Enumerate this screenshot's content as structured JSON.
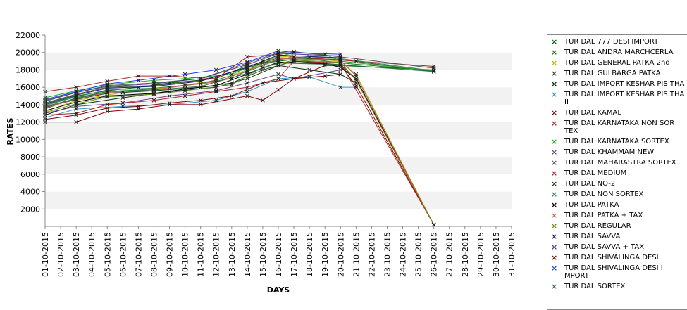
{
  "chart_data": {
    "type": "line",
    "title": "",
    "xlabel": "DAYS",
    "ylabel": "RATES",
    "ylim": [
      0,
      22000
    ],
    "yticks": [
      2000,
      4000,
      6000,
      8000,
      10000,
      12000,
      14000,
      16000,
      18000,
      20000,
      22000
    ],
    "x": [
      "01-10-2015",
      "02-10-2015",
      "03-10-2015",
      "04-10-2015",
      "05-10-2015",
      "06-10-2015",
      "07-10-2015",
      "08-10-2015",
      "09-10-2015",
      "10-10-2015",
      "11-10-2015",
      "12-10-2015",
      "13-10-2015",
      "14-10-2015",
      "15-10-2015",
      "16-10-2015",
      "17-10-2015",
      "18-10-2015",
      "19-10-2015",
      "20-10-2015",
      "21-10-2015",
      "22-10-2015",
      "23-10-2015",
      "24-10-2015",
      "25-10-2015",
      "26-10-2015",
      "27-10-2015",
      "28-10-2015",
      "29-10-2015",
      "30-10-2015",
      "31-10-2015"
    ],
    "grid": "alternating horizontal bands",
    "legend_position": "right",
    "series": [
      {
        "name": "TUR DAL  777 DESI IMPORT",
        "color": "#006400",
        "points": [
          [
            "01-10-2015",
            14000
          ],
          [
            "03-10-2015",
            15000
          ],
          [
            "05-10-2015",
            15600
          ],
          [
            "07-10-2015",
            16000
          ],
          [
            "09-10-2015",
            16500
          ],
          [
            "12-10-2015",
            17000
          ],
          [
            "14-10-2015",
            18500
          ],
          [
            "16-10-2015",
            19000
          ],
          [
            "17-10-2015",
            19200
          ],
          [
            "20-10-2015",
            18500
          ],
          [
            "26-10-2015",
            18000
          ]
        ]
      },
      {
        "name": "TUR DAL ANDRA MARCHCERLA",
        "color": "#1a7a1a",
        "points": [
          [
            "01-10-2015",
            13500
          ],
          [
            "03-10-2015",
            14800
          ],
          [
            "05-10-2015",
            15500
          ],
          [
            "08-10-2015",
            15800
          ],
          [
            "10-10-2015",
            16200
          ],
          [
            "13-10-2015",
            17000
          ],
          [
            "15-10-2015",
            18800
          ],
          [
            "17-10-2015",
            19500
          ],
          [
            "20-10-2015",
            18800
          ],
          [
            "26-10-2015",
            17900
          ]
        ]
      },
      {
        "name": "TUR DAL GENERAL PATKA 2nd",
        "color": "#b8b800",
        "points": [
          [
            "01-10-2015",
            13200
          ],
          [
            "03-10-2015",
            14500
          ],
          [
            "06-10-2015",
            15400
          ],
          [
            "09-10-2015",
            16000
          ],
          [
            "12-10-2015",
            16800
          ],
          [
            "14-10-2015",
            18000
          ],
          [
            "16-10-2015",
            19600
          ],
          [
            "20-10-2015",
            19000
          ],
          [
            "21-10-2015",
            17500
          ],
          [
            "26-10-2015",
            200
          ]
        ]
      },
      {
        "name": "TUR DAL GULBARGA PATKA",
        "color": "#2f4f2f",
        "points": [
          [
            "01-10-2015",
            14200
          ],
          [
            "03-10-2015",
            15200
          ],
          [
            "05-10-2015",
            16000
          ],
          [
            "08-10-2015",
            16200
          ],
          [
            "11-10-2015",
            16800
          ],
          [
            "14-10-2015",
            18200
          ],
          [
            "16-10-2015",
            19400
          ],
          [
            "20-10-2015",
            19200
          ],
          [
            "26-10-2015",
            17800
          ]
        ]
      },
      {
        "name": "TUR DAL IMPORT KESHAR PIS THA I",
        "color": "#003300",
        "points": [
          [
            "01-10-2015",
            12800
          ],
          [
            "03-10-2015",
            14000
          ],
          [
            "06-10-2015",
            14800
          ],
          [
            "09-10-2015",
            15500
          ],
          [
            "12-10-2015",
            16000
          ],
          [
            "14-10-2015",
            17000
          ],
          [
            "16-10-2015",
            18500
          ],
          [
            "18-10-2015",
            18000
          ],
          [
            "20-10-2015",
            17500
          ],
          [
            "21-10-2015",
            16500
          ]
        ]
      },
      {
        "name": "TUR DAL IMPORT KESHAR PIS THA II",
        "color": "#3399cc",
        "points": [
          [
            "01-10-2015",
            12500
          ],
          [
            "03-10-2015",
            13500
          ],
          [
            "06-10-2015",
            13800
          ],
          [
            "09-10-2015",
            14000
          ],
          [
            "12-10-2015",
            14500
          ],
          [
            "14-10-2015",
            15500
          ],
          [
            "16-10-2015",
            17000
          ],
          [
            "18-10-2015",
            17200
          ],
          [
            "20-10-2015",
            16000
          ],
          [
            "21-10-2015",
            16000
          ]
        ]
      },
      {
        "name": "TUR DAL KAMAL",
        "color": "#8b0000",
        "points": [
          [
            "01-10-2015",
            12000
          ],
          [
            "03-10-2015",
            12000
          ],
          [
            "05-10-2015",
            13200
          ],
          [
            "07-10-2015",
            13500
          ],
          [
            "09-10-2015",
            14000
          ],
          [
            "11-10-2015",
            14000
          ],
          [
            "14-10-2015",
            15000
          ],
          [
            "15-10-2015",
            14500
          ],
          [
            "16-10-2015",
            15700
          ],
          [
            "17-10-2015",
            17000
          ],
          [
            "19-10-2015",
            18500
          ],
          [
            "20-10-2015",
            18500
          ],
          [
            "21-10-2015",
            16200
          ],
          [
            "26-10-2015",
            200
          ]
        ]
      },
      {
        "name": "TUR DAL KARNATAKA NON SOR TEX",
        "color": "#a52a2a",
        "points": [
          [
            "01-10-2015",
            15500
          ],
          [
            "03-10-2015",
            16000
          ],
          [
            "05-10-2015",
            16700
          ],
          [
            "07-10-2015",
            17300
          ],
          [
            "09-10-2015",
            17300
          ],
          [
            "12-10-2015",
            17000
          ],
          [
            "14-10-2015",
            19500
          ],
          [
            "16-10-2015",
            19800
          ],
          [
            "17-10-2015",
            19500
          ],
          [
            "21-10-2015",
            19000
          ],
          [
            "26-10-2015",
            18400
          ]
        ]
      },
      {
        "name": "TUR DAL KARNATAKA SORTEX",
        "color": "#22aa22",
        "points": [
          [
            "01-10-2015",
            14800
          ],
          [
            "03-10-2015",
            15600
          ],
          [
            "05-10-2015",
            16300
          ],
          [
            "08-10-2015",
            16800
          ],
          [
            "10-10-2015",
            17000
          ],
          [
            "13-10-2015",
            17500
          ],
          [
            "15-10-2015",
            19000
          ],
          [
            "17-10-2015",
            20000
          ],
          [
            "19-10-2015",
            19800
          ],
          [
            "20-10-2015",
            19000
          ],
          [
            "26-10-2015",
            17900
          ]
        ]
      },
      {
        "name": "TUR DAL KHAMMAM NEW",
        "color": "#6a3d9a",
        "points": [
          [
            "01-10-2015",
            13000
          ],
          [
            "03-10-2015",
            13800
          ],
          [
            "06-10-2015",
            14200
          ],
          [
            "09-10-2015",
            15000
          ],
          [
            "12-10-2015",
            15600
          ],
          [
            "14-10-2015",
            16500
          ],
          [
            "16-10-2015",
            17500
          ],
          [
            "17-10-2015",
            17000
          ],
          [
            "20-10-2015",
            18000
          ]
        ]
      },
      {
        "name": "TUR DAL MAHARASTRA SORTEX",
        "color": "#555555",
        "points": [
          [
            "01-10-2015",
            14500
          ],
          [
            "03-10-2015",
            15400
          ],
          [
            "05-10-2015",
            16200
          ],
          [
            "08-10-2015",
            16500
          ],
          [
            "11-10-2015",
            17000
          ],
          [
            "14-10-2015",
            18800
          ],
          [
            "16-10-2015",
            20000
          ],
          [
            "17-10-2015",
            20100
          ],
          [
            "20-10-2015",
            19500
          ],
          [
            "26-10-2015",
            18200
          ]
        ]
      },
      {
        "name": "TUR DAL MEDIUM",
        "color": "#b22222",
        "points": [
          [
            "01-10-2015",
            12800
          ],
          [
            "03-10-2015",
            13000
          ],
          [
            "05-10-2015",
            14000
          ],
          [
            "08-10-2015",
            14500
          ],
          [
            "10-10-2015",
            15000
          ],
          [
            "12-10-2015",
            15500
          ],
          [
            "14-10-2015",
            16000
          ],
          [
            "16-10-2015",
            17000
          ],
          [
            "17-10-2015",
            19000
          ],
          [
            "20-10-2015",
            18800
          ],
          [
            "26-10-2015",
            200
          ]
        ]
      },
      {
        "name": "TUR DAL NO-2",
        "color": "#1f3f1f",
        "points": [
          [
            "01-10-2015",
            13700
          ],
          [
            "03-10-2015",
            14600
          ],
          [
            "05-10-2015",
            15300
          ],
          [
            "08-10-2015",
            15600
          ],
          [
            "11-10-2015",
            16000
          ],
          [
            "13-10-2015",
            16500
          ],
          [
            "15-10-2015",
            18000
          ],
          [
            "17-10-2015",
            19000
          ],
          [
            "20-10-2015",
            18600
          ],
          [
            "21-10-2015",
            17000
          ]
        ]
      },
      {
        "name": "TUR DAL NON SORTEX",
        "color": "#2e8b57",
        "points": [
          [
            "01-10-2015",
            13900
          ],
          [
            "03-10-2015",
            14900
          ],
          [
            "05-10-2015",
            15700
          ],
          [
            "08-10-2015",
            15900
          ],
          [
            "11-10-2015",
            16400
          ],
          [
            "14-10-2015",
            17800
          ],
          [
            "16-10-2015",
            19200
          ],
          [
            "18-10-2015",
            19500
          ],
          [
            "20-10-2015",
            19300
          ],
          [
            "26-10-2015",
            17900
          ]
        ]
      },
      {
        "name": "TUR DAL PATKA",
        "color": "#000000",
        "points": [
          [
            "01-10-2015",
            13300
          ],
          [
            "03-10-2015",
            14300
          ],
          [
            "05-10-2015",
            15000
          ],
          [
            "08-10-2015",
            15300
          ],
          [
            "10-10-2015",
            15800
          ],
          [
            "12-10-2015",
            16200
          ],
          [
            "14-10-2015",
            17500
          ],
          [
            "16-10-2015",
            18900
          ],
          [
            "19-10-2015",
            18700
          ],
          [
            "20-10-2015",
            18300
          ],
          [
            "21-10-2015",
            17000
          ],
          [
            "26-10-2015",
            200
          ]
        ]
      },
      {
        "name": "TUR DAL PATKA + TAX",
        "color": "#cd5c5c",
        "points": [
          [
            "01-10-2015",
            13600
          ],
          [
            "03-10-2015",
            14700
          ],
          [
            "05-10-2015",
            15400
          ],
          [
            "08-10-2015",
            15700
          ],
          [
            "10-10-2015",
            16200
          ],
          [
            "12-10-2015",
            16600
          ],
          [
            "14-10-2015",
            17900
          ],
          [
            "16-10-2015",
            19300
          ],
          [
            "20-10-2015",
            19100
          ],
          [
            "21-10-2015",
            17300
          ],
          [
            "26-10-2015",
            200
          ]
        ]
      },
      {
        "name": "TUR DAL REGULAR",
        "color": "#6b8e23",
        "points": [
          [
            "01-10-2015",
            13100
          ],
          [
            "03-10-2015",
            14100
          ],
          [
            "05-10-2015",
            14900
          ],
          [
            "08-10-2015",
            15200
          ],
          [
            "10-10-2015",
            15600
          ],
          [
            "13-10-2015",
            16300
          ],
          [
            "15-10-2015",
            18300
          ],
          [
            "17-10-2015",
            19100
          ],
          [
            "20-10-2015",
            18900
          ],
          [
            "21-10-2015",
            16800
          ],
          [
            "26-10-2015",
            200
          ]
        ]
      },
      {
        "name": "TUR DAL SAVVA",
        "color": "#191970",
        "points": [
          [
            "01-10-2015",
            14100
          ],
          [
            "03-10-2015",
            15100
          ],
          [
            "05-10-2015",
            15900
          ],
          [
            "08-10-2015",
            16100
          ],
          [
            "11-10-2015",
            16700
          ],
          [
            "14-10-2015",
            18300
          ],
          [
            "16-10-2015",
            19700
          ],
          [
            "20-10-2015",
            19400
          ]
        ]
      },
      {
        "name": "TUR DAL SAVVA + TAX",
        "color": "#483d8b",
        "points": [
          [
            "01-10-2015",
            14400
          ],
          [
            "03-10-2015",
            15400
          ],
          [
            "05-10-2015",
            16100
          ],
          [
            "08-10-2015",
            16400
          ],
          [
            "11-10-2015",
            17000
          ],
          [
            "14-10-2015",
            18600
          ],
          [
            "16-10-2015",
            19900
          ],
          [
            "20-10-2015",
            19600
          ]
        ]
      },
      {
        "name": "TUR DAL SHIVALINGA DESI",
        "color": "#800000",
        "points": [
          [
            "01-10-2015",
            12300
          ],
          [
            "03-10-2015",
            12800
          ],
          [
            "05-10-2015",
            13600
          ],
          [
            "07-10-2015",
            13800
          ],
          [
            "09-10-2015",
            14200
          ],
          [
            "11-10-2015",
            14500
          ],
          [
            "13-10-2015",
            15000
          ],
          [
            "15-10-2015",
            16500
          ],
          [
            "17-10-2015",
            17000
          ],
          [
            "19-10-2015",
            17300
          ],
          [
            "20-10-2015",
            17500
          ]
        ]
      },
      {
        "name": "TUR DAL SHIVALINGA DESI I MPORT",
        "color": "#1e3cff",
        "points": [
          [
            "01-10-2015",
            14600
          ],
          [
            "03-10-2015",
            15500
          ],
          [
            "05-10-2015",
            16400
          ],
          [
            "07-10-2015",
            16800
          ],
          [
            "10-10-2015",
            17500
          ],
          [
            "12-10-2015",
            18000
          ],
          [
            "14-10-2015",
            18900
          ],
          [
            "16-10-2015",
            20200
          ],
          [
            "17-10-2015",
            20000
          ],
          [
            "20-10-2015",
            19800
          ]
        ]
      },
      {
        "name": "TUR DAL SORTEX",
        "color": "#2f6f4f",
        "points": [
          [
            "01-10-2015",
            13800
          ],
          [
            "03-10-2015",
            14700
          ],
          [
            "05-10-2015",
            15500
          ],
          [
            "08-10-2015",
            15700
          ],
          [
            "11-10-2015",
            16100
          ],
          [
            "14-10-2015",
            17600
          ],
          [
            "16-10-2015",
            18800
          ],
          [
            "20-10-2015",
            18600
          ],
          [
            "26-10-2015",
            17800
          ]
        ]
      }
    ]
  }
}
